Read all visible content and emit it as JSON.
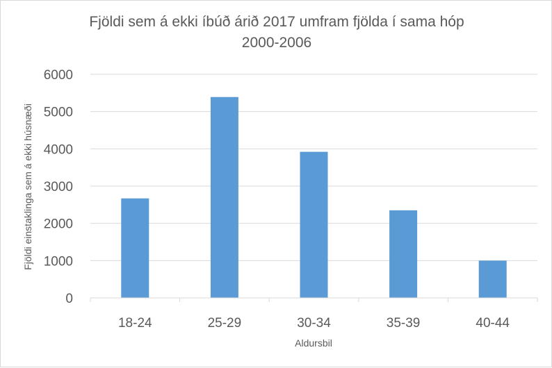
{
  "chart_data": {
    "type": "bar",
    "title": [
      "Fjöldi sem á ekki íbúð árið 2017 umfram fjölda í sama hóp",
      "2000-2006"
    ],
    "categories": [
      "18-24",
      "25-29",
      "30-34",
      "35-39",
      "40-44"
    ],
    "values": [
      2670,
      5390,
      3920,
      2350,
      1000
    ],
    "xlabel": "Aldursbil",
    "ylabel": "Fjöldi einstaklinga sem á ekki húsnæði",
    "ylim": [
      0,
      6000
    ],
    "yticks": [
      "0",
      "1000",
      "2000",
      "3000",
      "4000",
      "5000",
      "6000"
    ],
    "grid": true,
    "legend": "none",
    "colors": {
      "bar": "#5b9bd5",
      "grid": "#d9d9d9",
      "text": "#595959"
    }
  }
}
